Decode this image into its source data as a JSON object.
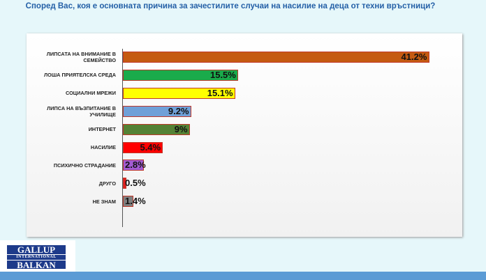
{
  "chart_data": {
    "type": "bar",
    "orientation": "horizontal",
    "title": "Според Вас, коя е основната причина за зачестилите случаи на насилие на деца от техни връстници?",
    "categories": [
      "ЛИПСАТА НА ВНИМАНИЕ В СЕМЕЙСТВО",
      "ЛОША ПРИЯТЕЛСКА СРЕДА",
      "СОЦИАЛНИ МРЕЖИ",
      "ЛИПСА НА ВЪЗПИТАНИЕ В УЧИЛИЩЕ",
      "ИНТЕРНЕТ",
      "НАСИЛИЕ",
      "ПСИХИЧНО СТРАДАНИЕ",
      "ДРУГО",
      "НЕ ЗНАМ"
    ],
    "values": [
      41.2,
      15.5,
      15.1,
      9.2,
      9,
      5.4,
      2.8,
      0.5,
      1.4
    ],
    "value_labels": [
      "41.2%",
      "15.5%",
      "15.1%",
      "9.2%",
      "9%",
      "5.4%",
      "2.8%",
      "0.5%",
      "1.4%"
    ],
    "colors": [
      "#c55a11",
      "#1aab4b",
      "#ffff00",
      "#6fa0d8",
      "#548235",
      "#ff0000",
      "#a35bd3",
      "#e02020",
      "#7f7f7f"
    ],
    "xlim": [
      0,
      45
    ]
  },
  "logo": {
    "top": "GALLUP",
    "middle": "INTERNATIONAL",
    "bottom": "BALKAN"
  }
}
